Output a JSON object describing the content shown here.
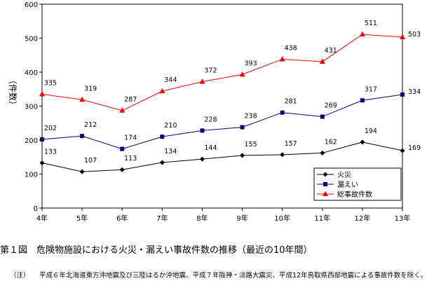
{
  "chart_data": {
    "type": "line",
    "categories": [
      "4年",
      "5年",
      "6年",
      "7年",
      "8年",
      "9年",
      "10年",
      "11年",
      "12年",
      "13年"
    ],
    "ylim": [
      0,
      600
    ],
    "yticks": [
      "0",
      "100",
      "200",
      "300",
      "400",
      "500",
      "600"
    ],
    "ylabel": "（件数）",
    "grid": false,
    "legend": "bottom-right",
    "series": [
      {
        "name": "火災",
        "color": "#000000",
        "marker": "diamond",
        "values": [
          133,
          107,
          113,
          134,
          144,
          155,
          157,
          162,
          194,
          169
        ]
      },
      {
        "name": "漏えい",
        "color": "#000080",
        "marker": "square",
        "values": [
          202,
          212,
          174,
          210,
          228,
          238,
          281,
          269,
          317,
          334
        ]
      },
      {
        "name": "総事故件数",
        "color": "#ff0000",
        "marker": "triangle",
        "values": [
          335,
          319,
          287,
          344,
          372,
          393,
          438,
          431,
          511,
          503
        ]
      }
    ]
  },
  "caption": "第１図　危険物施設における火災・漏えい事故件数の推移（最近の10年間）",
  "note_mark": "（注）",
  "note_text": "平成６年北海道東方沖地震及び三陸はるか沖地震、平成７年阪神・淡路大震災、平成12年鳥取県西部地震による事故件数を除く。"
}
